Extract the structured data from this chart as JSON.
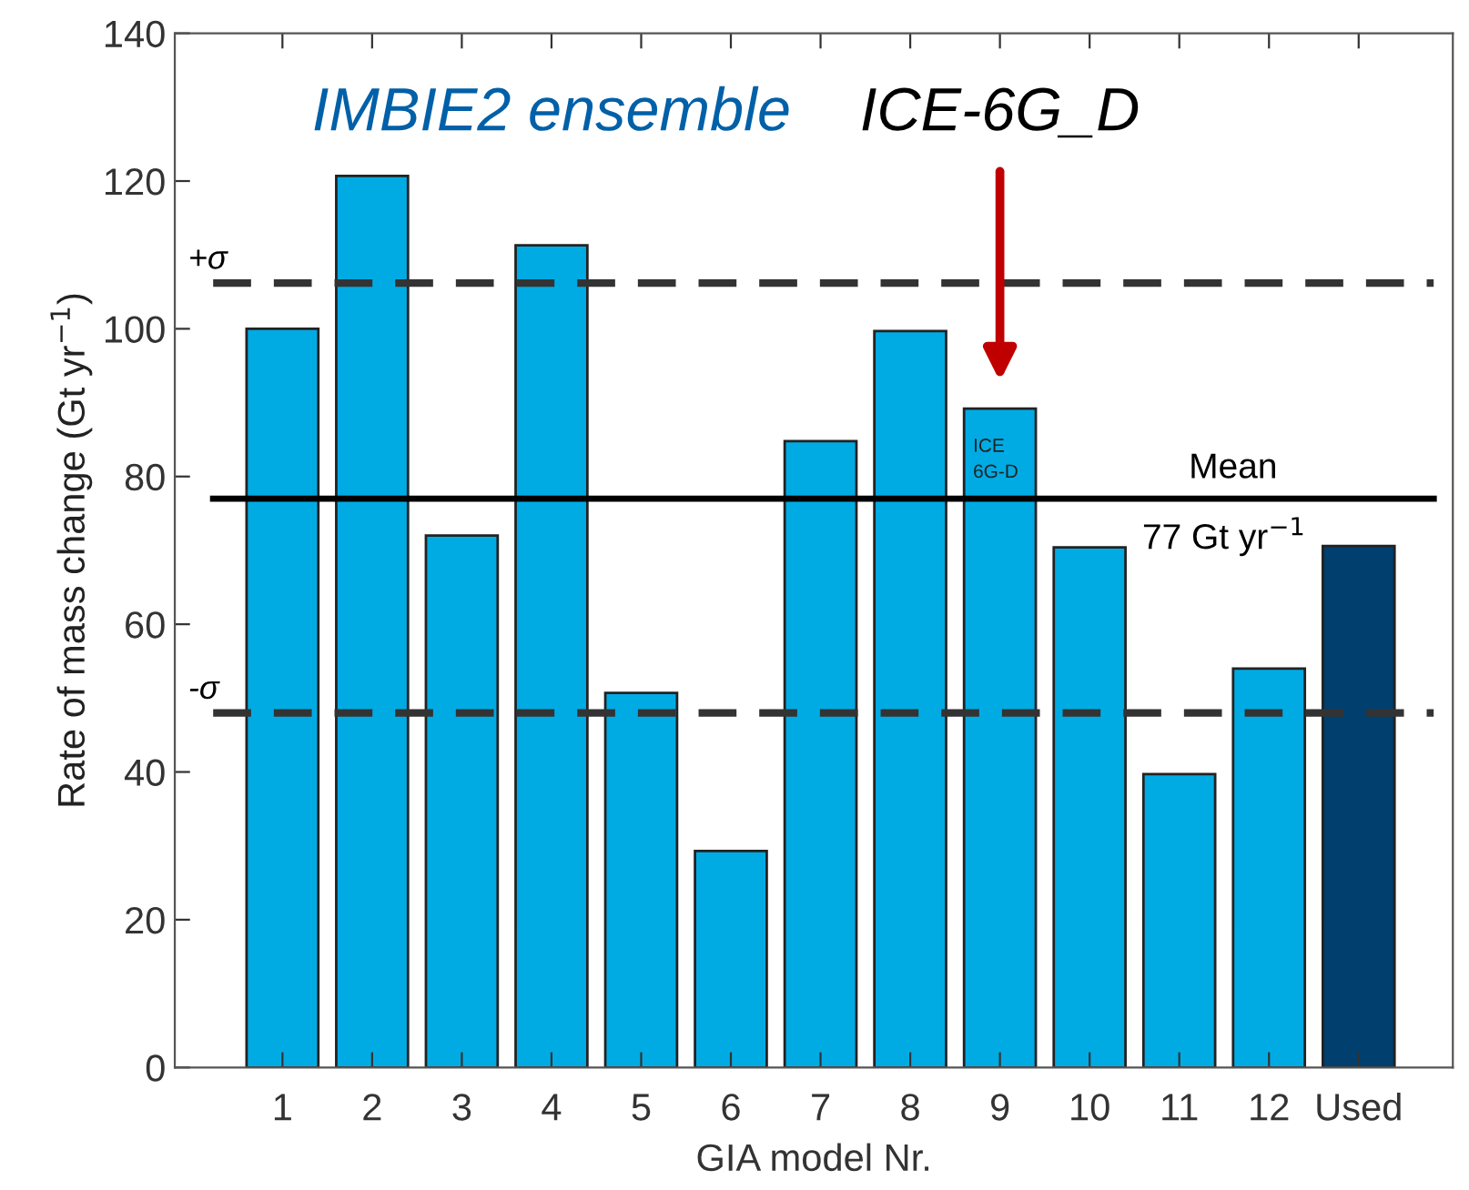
{
  "chart_data": {
    "type": "bar",
    "xlabel": "GIA model Nr.",
    "ylabel": "Rate of mass change (Gt yr$^{−1}$)",
    "categories": [
      "1",
      "2",
      "3",
      "4",
      "5",
      "6",
      "7",
      "8",
      "9",
      "10",
      "11",
      "12",
      "Used"
    ],
    "values": [
      100,
      120.7,
      72,
      111.3,
      50.7,
      29.3,
      84.8,
      99.7,
      89.2,
      70.4,
      39.7,
      54,
      70.6
    ],
    "colors": [
      "#00abe4",
      "#00abe4",
      "#00abe4",
      "#00abe4",
      "#00abe4",
      "#00abe4",
      "#00abe4",
      "#00abe4",
      "#00abe4",
      "#00abe4",
      "#00abe4",
      "#00abe4",
      "#003f6e"
    ],
    "ylim": [
      0,
      140
    ],
    "yticks": [
      0,
      20,
      40,
      60,
      80,
      100,
      120,
      140
    ],
    "ref_lines": [
      {
        "axis": "y",
        "value": 106.2,
        "label": "+σ",
        "color": "#333333",
        "line_style": "dashed"
      },
      {
        "axis": "y",
        "value": 48,
        "label": "-σ",
        "color": "#333333",
        "line_style": "dashed"
      },
      {
        "axis": "y",
        "value": 77,
        "label": "Mean",
        "color": "#000000",
        "line_style": "solid"
      }
    ],
    "annotations": [
      "IMBIE2 ensemble",
      "ICE-6G_D",
      {
        "text": "ICE\n6G-D",
        "x": "9",
        "y": 89.2
      },
      "77 Gt yr$^{−1}$"
    ],
    "grid": false,
    "legend": false
  }
}
